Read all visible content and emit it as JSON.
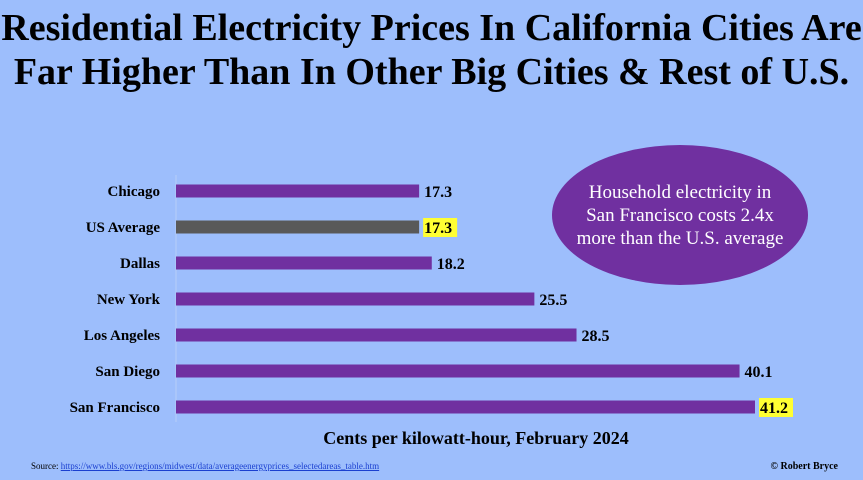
{
  "chart_data": {
    "type": "bar",
    "orientation": "horizontal",
    "title": "Residential Electricity Prices In California Cities Are Far Higher Than In Other Big Cities & Rest of U.S.",
    "xlabel": "Cents per kilowatt-hour, February 2024",
    "categories": [
      "Chicago",
      "US Average",
      "Dallas",
      "New York",
      "Los Angeles",
      "San Diego",
      "San Francisco"
    ],
    "values": [
      17.3,
      17.3,
      18.2,
      25.5,
      28.5,
      40.1,
      41.2
    ],
    "highlighted": [
      "US Average",
      "San Francisco"
    ],
    "colors": {
      "bar": "#7030a0",
      "us_average": "#595959",
      "highlight": "#ffff33",
      "background": "#9dbefc"
    },
    "xlim": [
      0,
      45
    ],
    "grid": false,
    "annotation": "Household electricity in San Francisco costs 2.4x more than the U.S. average"
  },
  "footer": {
    "source_label": "Source:",
    "source_url": "https://www.bls.gov/regions/midwest/data/averageenergyprices_selectedareas_table.htm",
    "credit": "© Robert Bryce"
  }
}
